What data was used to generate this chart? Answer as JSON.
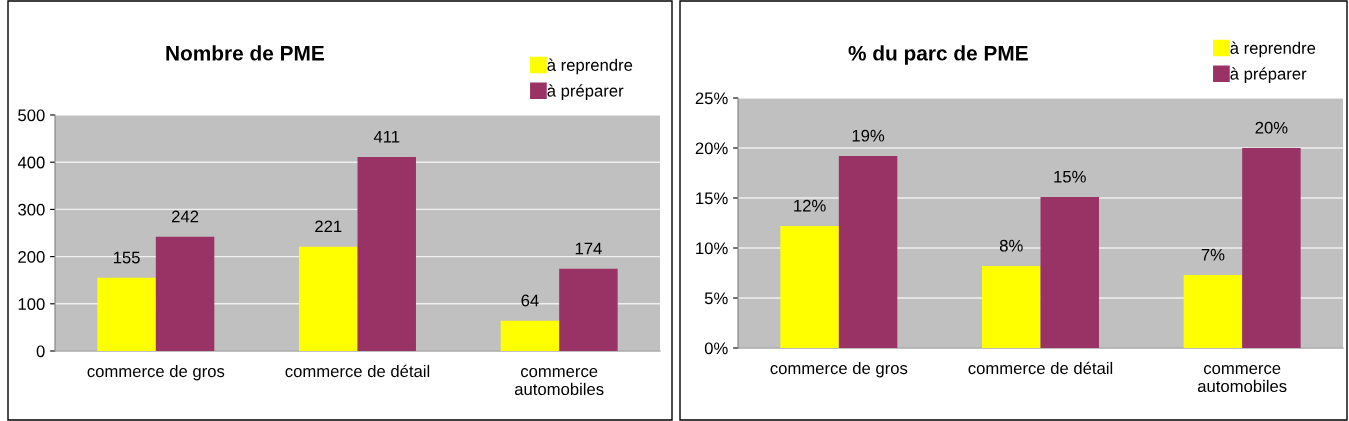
{
  "chart_data": [
    {
      "type": "bar",
      "title": "Nombre de PME",
      "categories": [
        "commerce de gros",
        "commerce de détail",
        "commerce\nautomobiles"
      ],
      "series": [
        {
          "name": "à reprendre",
          "color": "#ffff00",
          "values": [
            155,
            221,
            64
          ]
        },
        {
          "name": "à préparer",
          "color": "#993366",
          "values": [
            242,
            411,
            174
          ]
        }
      ],
      "ylim": [
        0,
        500
      ],
      "yticks": [
        0,
        100,
        200,
        300,
        400,
        500
      ],
      "grid": "y",
      "legend": "top right",
      "data_labels": true
    },
    {
      "type": "bar",
      "title": "% du parc de PME",
      "categories": [
        "commerce de gros",
        "commerce de détail",
        "commerce\nautomobiles"
      ],
      "series": [
        {
          "name": "à reprendre",
          "color": "#ffff00",
          "values": [
            12.2,
            8.2,
            7.3
          ],
          "value_labels": [
            "12%",
            "8%",
            "7%"
          ]
        },
        {
          "name": "à préparer",
          "color": "#993366",
          "values": [
            19.2,
            15.1,
            20.0
          ],
          "value_labels": [
            "19%",
            "15%",
            "20%"
          ]
        }
      ],
      "ylim": [
        0,
        25
      ],
      "yticks": [
        {
          "value": 0,
          "label": "0%"
        },
        {
          "value": 5,
          "label": "5%"
        },
        {
          "value": 10,
          "label": "10%"
        },
        {
          "value": 15,
          "label": "15%"
        },
        {
          "value": 20,
          "label": "20%"
        },
        {
          "value": 25,
          "label": "25%"
        }
      ],
      "grid": "y",
      "legend": "top right"
    }
  ]
}
